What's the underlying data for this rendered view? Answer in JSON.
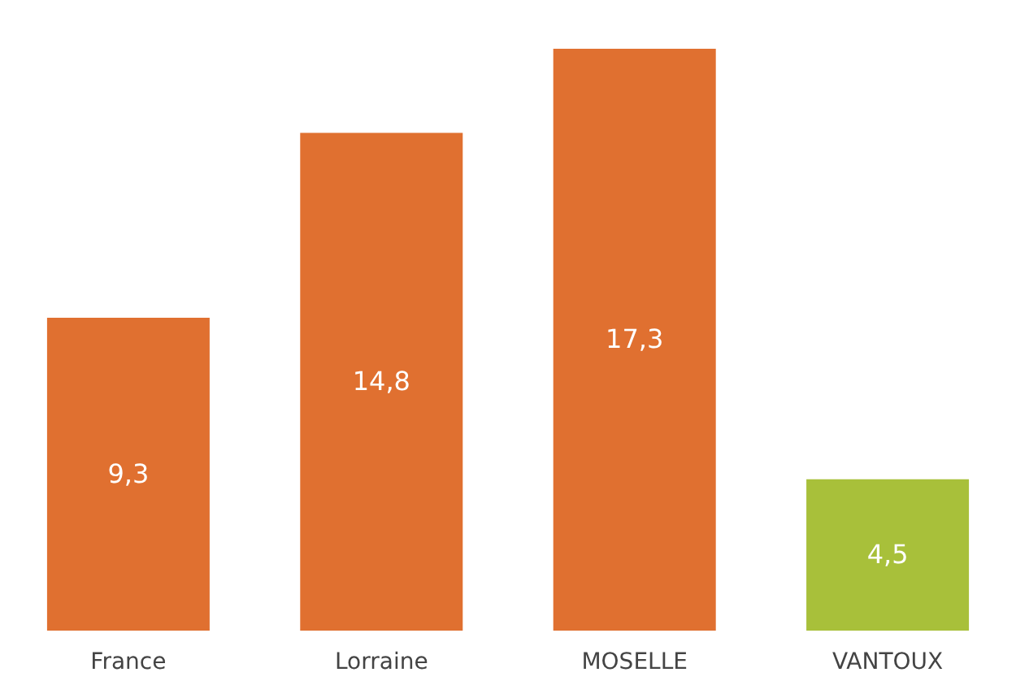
{
  "chart_data": {
    "type": "bar",
    "categories": [
      "France",
      "Lorraine",
      "MOSELLE",
      "VANTOUX"
    ],
    "values": [
      9.3,
      14.8,
      17.3,
      4.5
    ],
    "colors": [
      "#e07030",
      "#e07030",
      "#e07030",
      "#a8c03a"
    ],
    "value_labels": [
      "9,3",
      "14,8",
      "17,3",
      "4,5"
    ],
    "grid": false,
    "legend": false
  }
}
